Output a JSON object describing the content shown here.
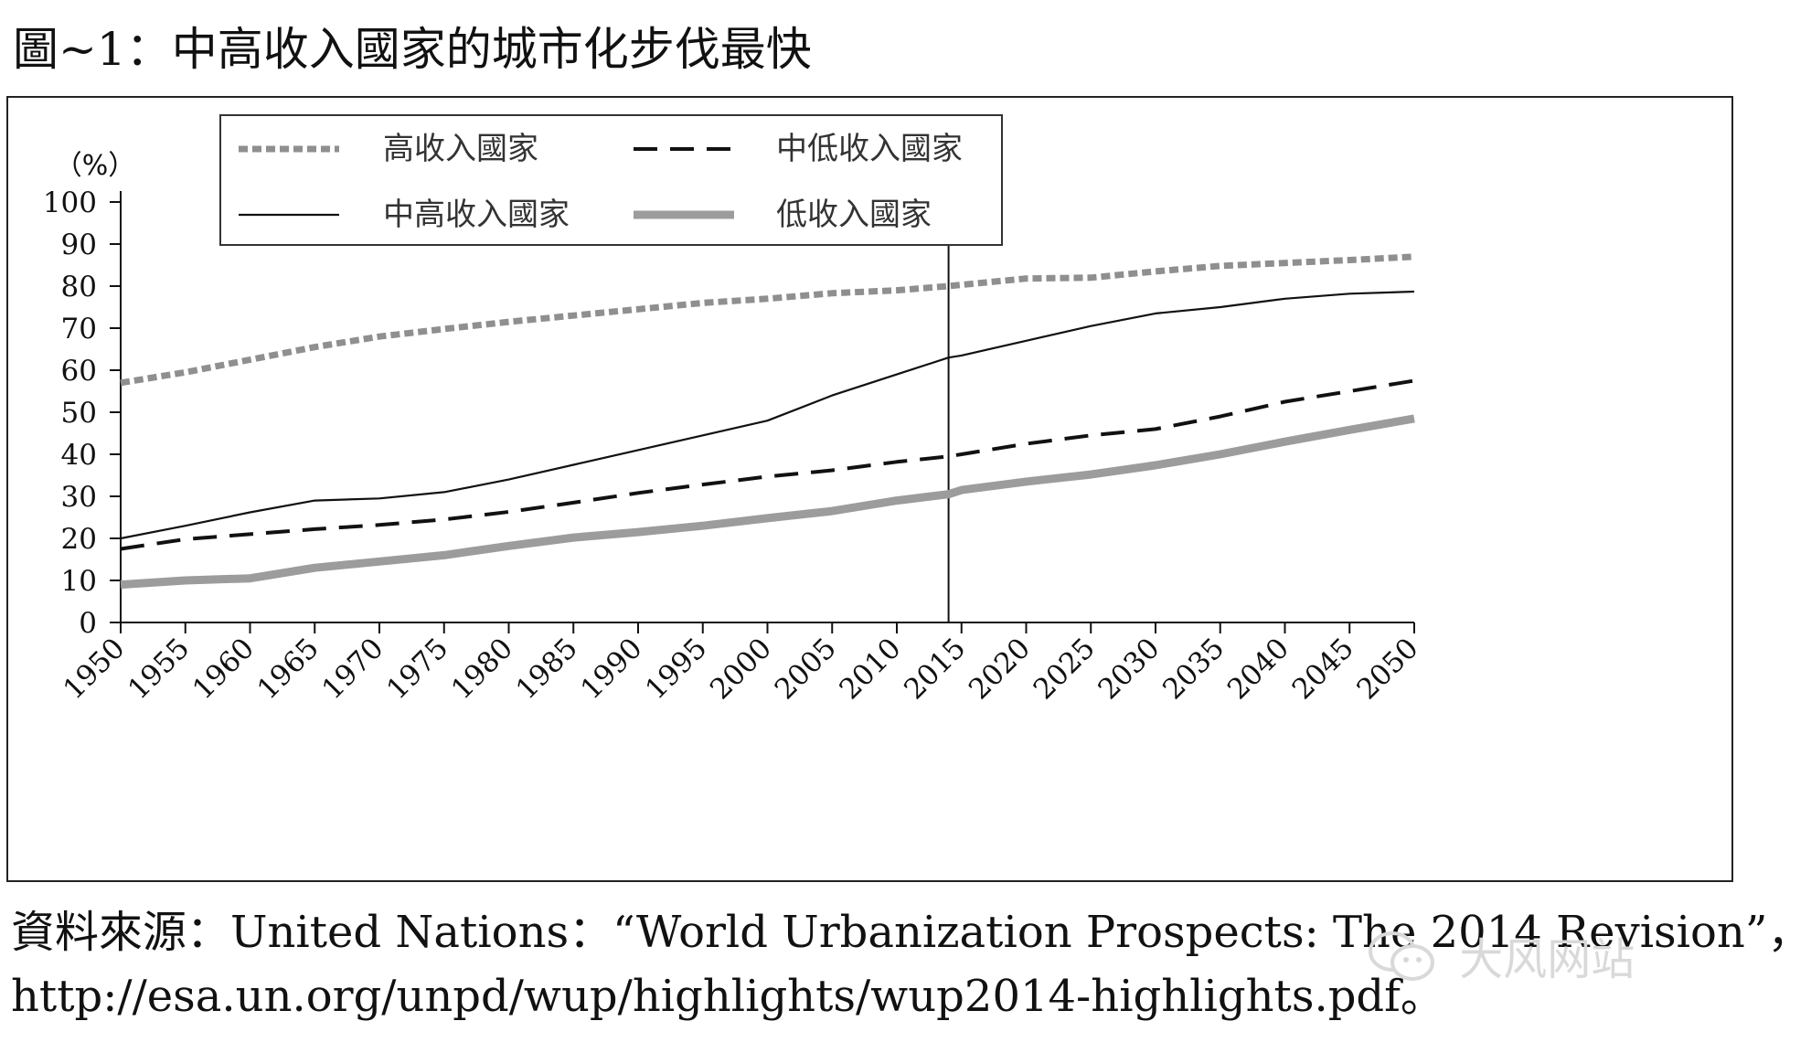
{
  "figure": {
    "title": "圖~1：中高收入國家的城市化步伐最快"
  },
  "source": {
    "label": "資料來源：",
    "org": "United Nations：",
    "report": "“World Urbanization Prospects: The 2014 Revision”，",
    "url": "http://esa.un.org/unpd/wup/highlights/wup2014-highlights.pdf。"
  },
  "watermark": {
    "text": "大风网站",
    "icon": "wechat-icon"
  },
  "colors": {
    "high_income": "#8f8f8f",
    "lower_middle": "#111111",
    "upper_middle": "#111111",
    "low_income": "#9c9c9c",
    "axis": "#111111",
    "frame": "#222222"
  },
  "chart_data": {
    "type": "line",
    "title": "",
    "ylabel": "（%）",
    "xlabel": "",
    "ylim": [
      0,
      100
    ],
    "xlim": [
      1950,
      2050
    ],
    "yticks": [
      "0",
      "10",
      "20",
      "30",
      "40",
      "50",
      "60",
      "70",
      "80",
      "90",
      "100"
    ],
    "xticks": [
      "1950",
      "1955",
      "1960",
      "1965",
      "1970",
      "1975",
      "1980",
      "1985",
      "1990",
      "1995",
      "2000",
      "2005",
      "2010",
      "2015",
      "2020",
      "2025",
      "2030",
      "2035",
      "2040",
      "2045",
      "2050"
    ],
    "reference_line_x": 2014,
    "legend": {
      "position": "top-left",
      "entries": [
        "高收入國家",
        "中低收入國家",
        "中高收入國家",
        "低收入國家"
      ]
    },
    "x": [
      1950,
      1955,
      1960,
      1965,
      1970,
      1975,
      1980,
      1985,
      1990,
      1995,
      2000,
      2005,
      2010,
      2014,
      2015,
      2020,
      2025,
      2030,
      2035,
      2040,
      2045,
      2050
    ],
    "series": [
      {
        "name": "高收入國家",
        "style": "dotted",
        "values": [
          57,
          59.5,
          62.5,
          65.5,
          68,
          69.8,
          71.5,
          73,
          74.5,
          76,
          77,
          78.3,
          79,
          80,
          80.3,
          81.8,
          82,
          83.5,
          84.8,
          85.5,
          86.2,
          87
        ]
      },
      {
        "name": "中低收入國家",
        "style": "dashed",
        "values": [
          17.5,
          19.8,
          21,
          22.2,
          23.2,
          24.5,
          26.3,
          28.5,
          30.8,
          32.8,
          34.7,
          36.2,
          38.2,
          39.5,
          40,
          42.5,
          44.5,
          46,
          49,
          52.5,
          55,
          57.5
        ]
      },
      {
        "name": "中高收入國家",
        "style": "solid",
        "values": [
          20,
          23,
          26.2,
          29,
          29.5,
          31,
          34,
          37.5,
          41,
          44.5,
          48,
          54,
          59,
          63,
          63.5,
          67,
          70.5,
          73.5,
          75,
          77,
          78.2,
          78.7
        ]
      },
      {
        "name": "低收入國家",
        "style": "thick",
        "values": [
          9,
          10,
          10.5,
          13,
          14.5,
          16,
          18.2,
          20.2,
          21.5,
          23,
          24.8,
          26.5,
          29,
          30.5,
          31.5,
          33.5,
          35.2,
          37.4,
          40,
          43,
          45.8,
          48.5
        ]
      }
    ]
  }
}
